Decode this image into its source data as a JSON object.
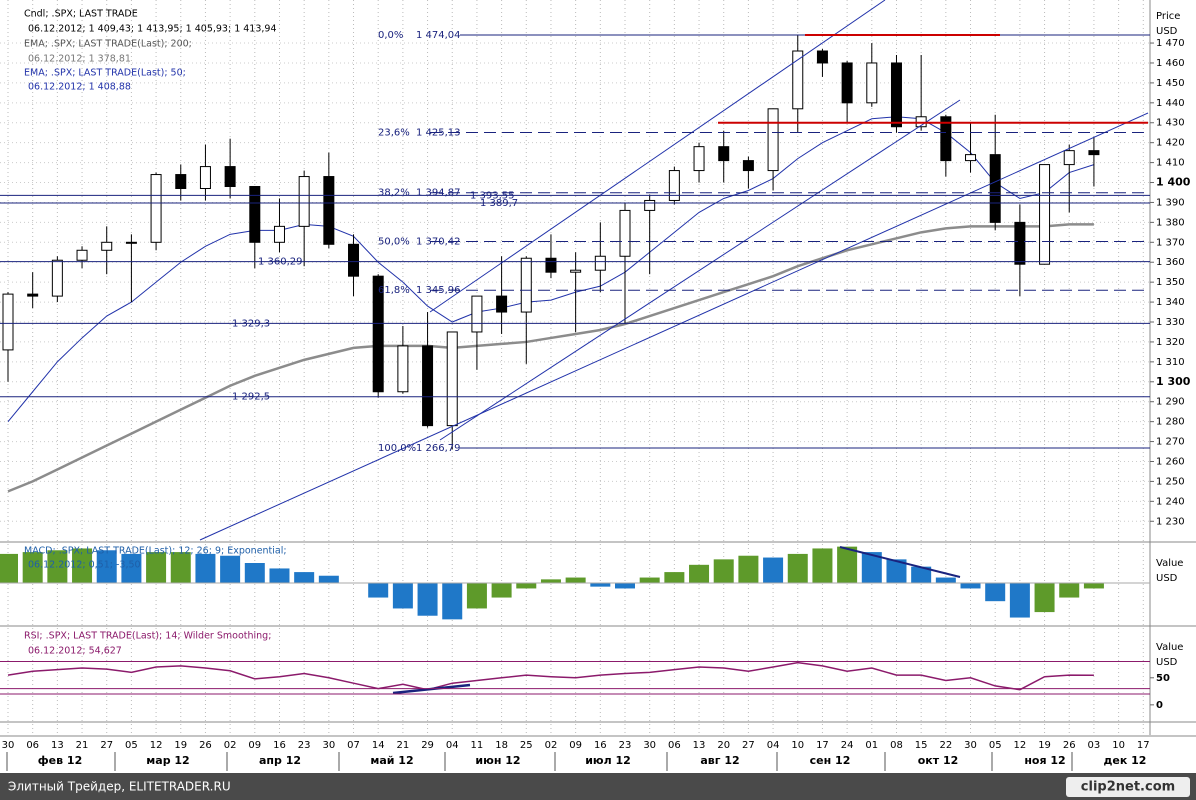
{
  "chart_data": [
    {
      "type": "candlestick",
      "header": [
        "Cndl; .SPX; LAST TRADE",
        "06.12.2012; 1 409,43; 1 413,95; 1 405,93; 1 413,94",
        "EMA; .SPX; LAST TRADE(Last); 200;",
        "06.12.2012; 1 378,81",
        "EMA; .SPX; LAST TRADE(Last); 50;",
        "06.12.2012; 1 408,88"
      ],
      "axis_title": "Price",
      "axis_unit": "USD",
      "categories": [
        "30",
        "06",
        "13",
        "21",
        "27",
        "05",
        "12",
        "19",
        "26",
        "02",
        "09",
        "16",
        "23",
        "30",
        "07",
        "14",
        "21",
        "29",
        "04",
        "11",
        "18",
        "25",
        "02",
        "09",
        "16",
        "23",
        "30",
        "06",
        "13",
        "20",
        "27",
        "04",
        "10",
        "17",
        "24",
        "01",
        "08",
        "15",
        "22",
        "30",
        "05",
        "12",
        "19",
        "26",
        "03",
        "10",
        "17"
      ],
      "months": [
        "фев 12",
        "мар 12",
        "апр 12",
        "май 12",
        "июн 12",
        "июл 12",
        "авг 12",
        "сен 12",
        "окт 12",
        "ноя 12",
        "дек 12"
      ],
      "open": [
        1316,
        1344,
        1343,
        1361,
        1366,
        1370,
        1370,
        1404,
        1397,
        1408,
        1398,
        1370,
        1378,
        1403,
        1369,
        1353,
        1295,
        1318,
        1278,
        1325,
        1343,
        1335,
        1362,
        1355,
        1356,
        1363,
        1386,
        1391,
        1406,
        1418,
        1411,
        1406,
        1437,
        1466,
        1460,
        1440,
        1460,
        1428,
        1433,
        1411,
        1414,
        1380,
        1359,
        1409,
        1416,
        null,
        null
      ],
      "high": [
        1345,
        1355,
        1363,
        1368,
        1378,
        1374,
        1405,
        1409,
        1419,
        1422,
        1398,
        1392,
        1406,
        1415,
        1374,
        1354,
        1328,
        1335,
        1325,
        1343,
        1363,
        1363,
        1374,
        1365,
        1380,
        1390,
        1394,
        1408,
        1420,
        1426,
        1413,
        1437,
        1474,
        1467,
        1461,
        1470,
        1464,
        1464,
        1434,
        1430,
        1434,
        1389,
        1409,
        1419,
        1423,
        null,
        null
      ],
      "low": [
        1300,
        1337,
        1340,
        1357,
        1354,
        1340,
        1366,
        1391,
        1391,
        1392,
        1357,
        1365,
        1358,
        1367,
        1343,
        1292,
        1294,
        1277,
        1266,
        1306,
        1324,
        1309,
        1352,
        1325,
        1345,
        1329,
        1354,
        1389,
        1400,
        1400,
        1397,
        1396,
        1425,
        1453,
        1430,
        1438,
        1425,
        1426,
        1403,
        1405,
        1376,
        1343,
        1359,
        1385,
        1398,
        null,
        null
      ],
      "close": [
        1344,
        1343,
        1361,
        1366,
        1370,
        1370,
        1404,
        1397,
        1408,
        1398,
        1370,
        1378,
        1403,
        1369,
        1353,
        1295,
        1318,
        1278,
        1325,
        1343,
        1335,
        1362,
        1355,
        1356,
        1363,
        1386,
        1391,
        1406,
        1418,
        1411,
        1406,
        1437,
        1466,
        1460,
        1440,
        1460,
        1428,
        1433,
        1411,
        1414,
        1380,
        1359,
        1409,
        1416,
        1414,
        null,
        null
      ],
      "candle_color": "#000000",
      "ema200": {
        "color": "#8c8c8c",
        "values": [
          1245,
          1250,
          1256,
          1262,
          1268,
          1274,
          1280,
          1286,
          1292,
          1298,
          1303,
          1307,
          1311,
          1314,
          1317,
          1318,
          1318,
          1318,
          1317,
          1318,
          1319,
          1320,
          1322,
          1324,
          1326,
          1329,
          1333,
          1337,
          1341,
          1345,
          1349,
          1353,
          1358,
          1362,
          1366,
          1369,
          1372,
          1375,
          1377,
          1378,
          1378,
          1378,
          1378,
          1379,
          1379,
          null,
          null
        ]
      },
      "ema50": {
        "color": "#2233aa",
        "values": [
          1280,
          1295,
          1310,
          1322,
          1333,
          1340,
          1350,
          1360,
          1368,
          1374,
          1376,
          1376,
          1379,
          1378,
          1373,
          1360,
          1350,
          1338,
          1330,
          1335,
          1337,
          1340,
          1341,
          1345,
          1348,
          1355,
          1365,
          1375,
          1385,
          1392,
          1396,
          1402,
          1412,
          1420,
          1426,
          1432,
          1433,
          1432,
          1425,
          1415,
          1400,
          1392,
          1395,
          1405,
          1409,
          null,
          null
        ]
      },
      "ylim": [
        1220.6,
        1491.6
      ],
      "yticks": [
        {
          "value": 1230,
          "label": "1 230"
        },
        {
          "value": 1240,
          "label": "1 240"
        },
        {
          "value": 1250,
          "label": "1 250"
        },
        {
          "value": 1260,
          "label": "1 260"
        },
        {
          "value": 1270,
          "label": "1 270"
        },
        {
          "value": 1280,
          "label": "1 280"
        },
        {
          "value": 1290,
          "label": "1 290"
        },
        {
          "value": 1300,
          "label": "1 300"
        },
        {
          "value": 1310,
          "label": "1 310"
        },
        {
          "value": 1320,
          "label": "1 320"
        },
        {
          "value": 1330,
          "label": "1 330"
        },
        {
          "value": 1340,
          "label": "1 340"
        },
        {
          "value": 1350,
          "label": "1 350"
        },
        {
          "value": 1360,
          "label": "1 360"
        },
        {
          "value": 1370,
          "label": "1 370"
        },
        {
          "value": 1380,
          "label": "1 380"
        },
        {
          "value": 1390,
          "label": "1 390"
        },
        {
          "value": 1400,
          "label": "1 400"
        },
        {
          "value": 1410,
          "label": "1 410"
        },
        {
          "value": 1420,
          "label": "1 420"
        },
        {
          "value": 1430,
          "label": "1 430"
        },
        {
          "value": 1440,
          "label": "1 440"
        },
        {
          "value": 1450,
          "label": "1 450"
        },
        {
          "value": 1460,
          "label": "1 460"
        },
        {
          "value": 1470,
          "label": "1 470"
        }
      ],
      "grid": true,
      "fib_levels": [
        {
          "pct": "0,0%",
          "value": 1474.04,
          "label": "1 474,04"
        },
        {
          "pct": "23,6%",
          "value": 1425.13,
          "label": "1 425,13"
        },
        {
          "pct": "38,2%",
          "value": 1394.87,
          "label": "1 394,87"
        },
        {
          "pct": "50,0%",
          "value": 1370.42,
          "label": "1 370,42"
        },
        {
          "pct": "61,8%",
          "value": 1345.96,
          "label": "1 345,96"
        },
        {
          "pct": "100,0%",
          "value": 1266.79,
          "label": "1 266,79"
        }
      ],
      "fib_color": "#1a237e",
      "levels": [
        {
          "value": 1393.55,
          "label": "1 393,55"
        },
        {
          "value": 1389.7,
          "label": "1 389,7"
        },
        {
          "value": 1360.29,
          "label": "1 360,29"
        },
        {
          "value": 1329.3,
          "label": "1 329,3"
        },
        {
          "value": 1292.5,
          "label": "1 292,5"
        }
      ],
      "red_levels": [
        1474.04,
        1430
      ],
      "red_color": "#cc0000"
    },
    {
      "type": "bar",
      "header": [
        "MACD; .SPX; LAST TRADE(Last); 12; 26; 9; Exponential;",
        "06.12.2012; 0,51; -3,50"
      ],
      "axis_title": "Value",
      "axis_unit": "USD",
      "values": [
        16,
        17,
        18,
        19,
        18,
        16,
        17,
        17,
        16,
        15,
        11,
        8,
        6,
        4,
        0,
        -8,
        -14,
        -18,
        -20,
        -14,
        -8,
        -3,
        2,
        3,
        -2,
        -3,
        3,
        6,
        10,
        13,
        15,
        14,
        16,
        19,
        20,
        17,
        13,
        9,
        3,
        -3,
        -10,
        -19,
        -16,
        -8,
        -3,
        null,
        null
      ],
      "up_color": "#5e9a2a",
      "down_color": "#1f78c8",
      "ylim": [
        -22,
        22
      ]
    },
    {
      "type": "line",
      "header": [
        "RSI; .SPX; LAST TRADE(Last); 14; Wilder Smoothing;",
        "06.12.2012; 54,627"
      ],
      "axis_title": "Value",
      "axis_unit": "USD",
      "values": [
        55,
        62,
        65,
        68,
        66,
        60,
        70,
        72,
        68,
        63,
        48,
        52,
        58,
        50,
        40,
        30,
        38,
        28,
        40,
        45,
        50,
        55,
        52,
        50,
        55,
        58,
        60,
        65,
        70,
        68,
        62,
        70,
        78,
        72,
        62,
        68,
        55,
        55,
        45,
        50,
        35,
        28,
        52,
        55,
        54.627,
        null,
        null
      ],
      "color": "#8b1a6b",
      "levels": [
        80,
        30,
        20
      ],
      "ylim": [
        -28,
        142
      ],
      "yticks": [
        50,
        0
      ]
    }
  ],
  "footer": {
    "left": "Элитный Трейдер, ELITETRADER.RU",
    "right": "clip2net.com"
  }
}
